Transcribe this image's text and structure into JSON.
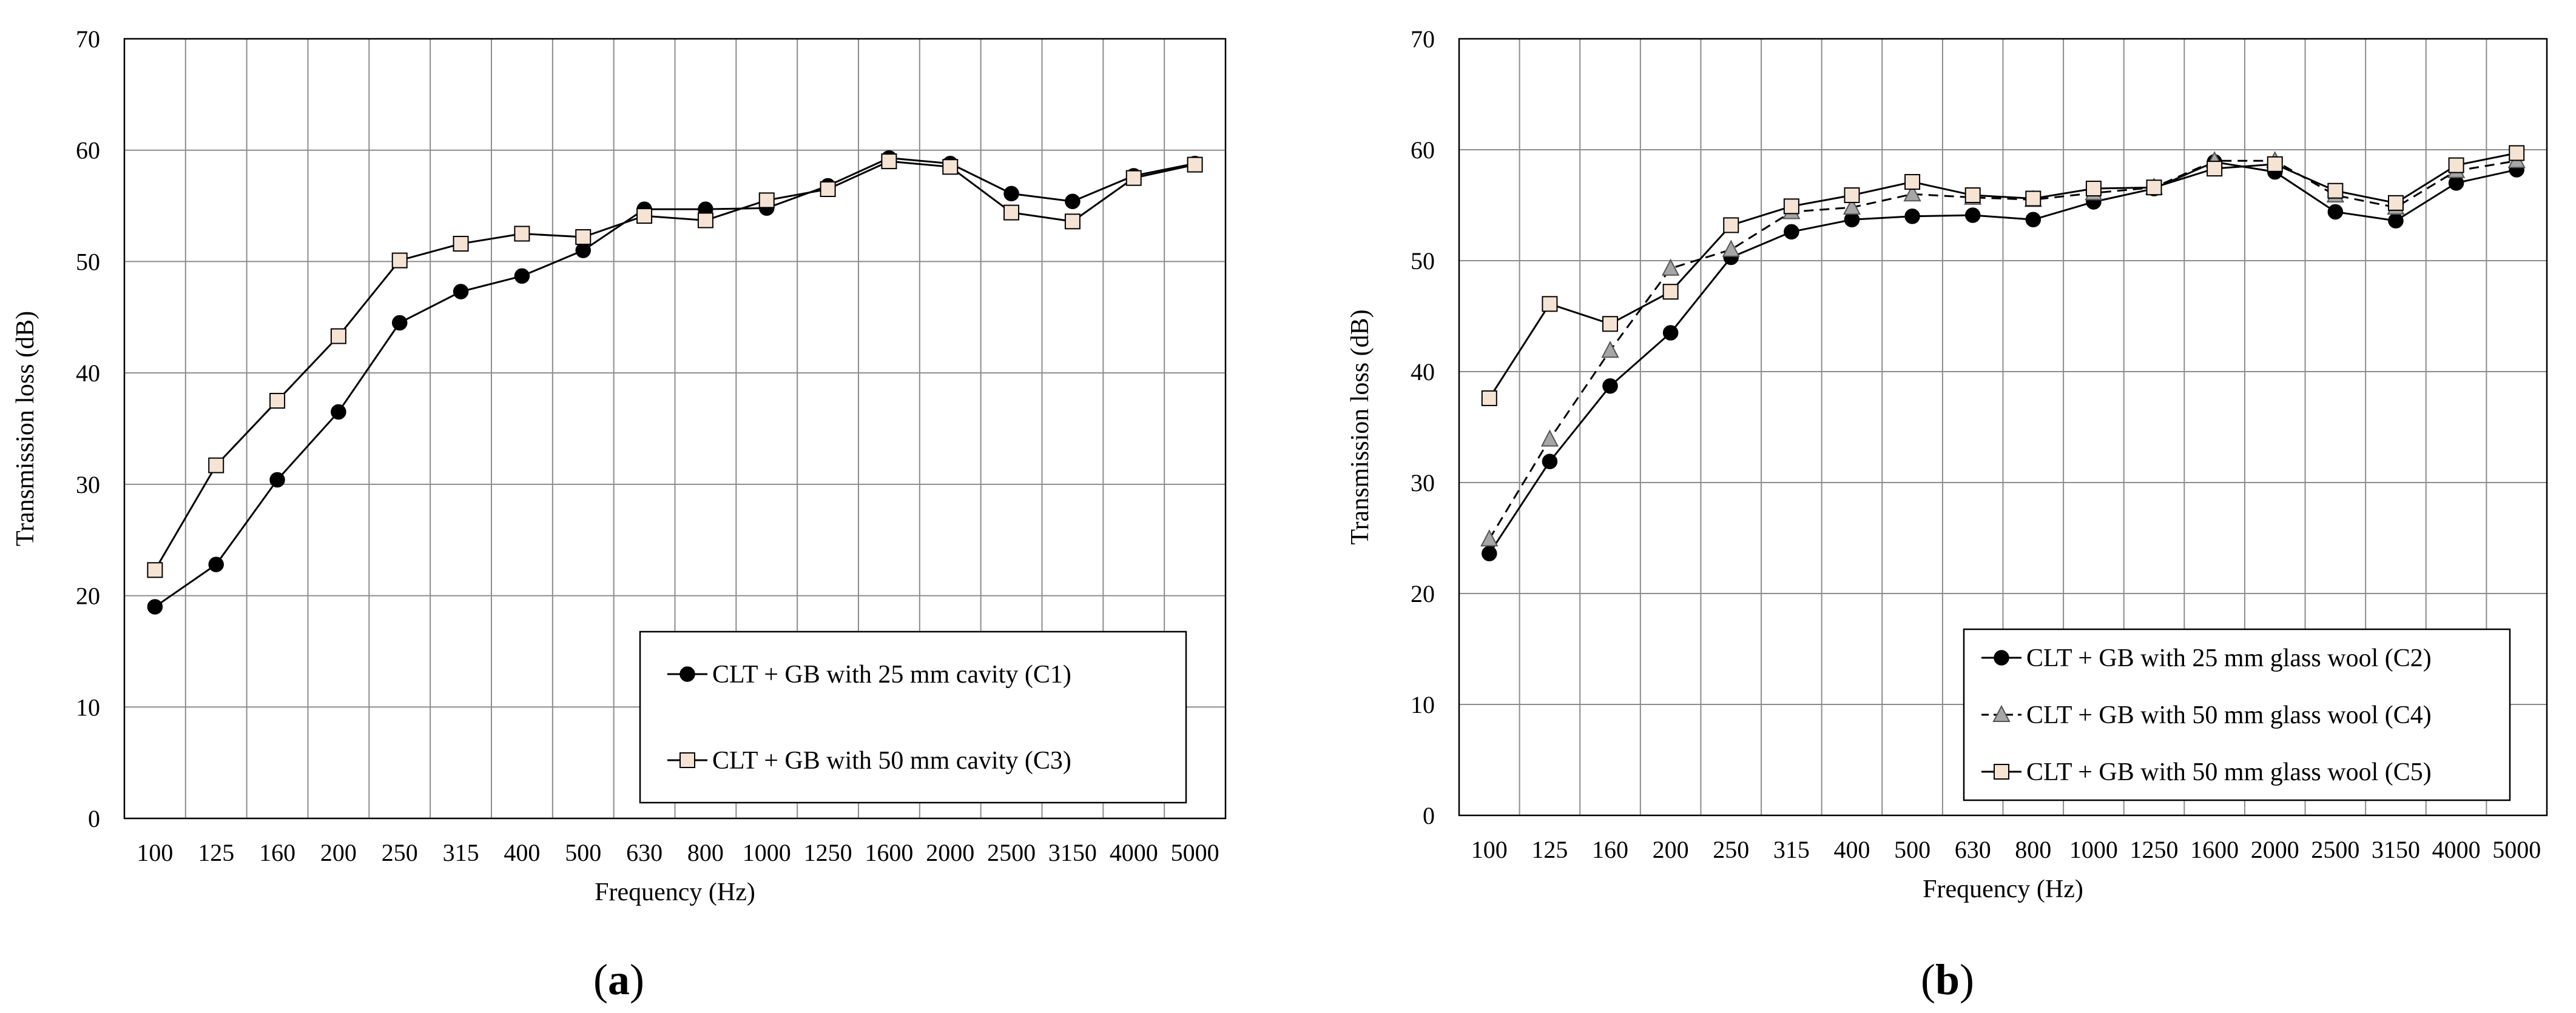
{
  "chart_data": [
    {
      "type": "line",
      "caption": "(a)",
      "xlabel": "Frequency  (Hz)",
      "ylabel": "Transmission loss (dB)",
      "ylim": [
        0,
        70
      ],
      "yticks": [
        0,
        10,
        20,
        30,
        40,
        50,
        60,
        70
      ],
      "grid": true,
      "legend_position": "bottom-right",
      "categories": [
        "100",
        "125",
        "160",
        "200",
        "250",
        "315",
        "400",
        "500",
        "630",
        "800",
        "1000",
        "1250",
        "1600",
        "2000",
        "2500",
        "3150",
        "4000",
        "5000"
      ],
      "series": [
        {
          "name": "CLT + GB with 25 mm cavity (C1)",
          "marker": "circle",
          "line": "solid",
          "color": "#000000",
          "values": [
            19.0,
            22.8,
            30.4,
            36.5,
            44.5,
            47.3,
            48.7,
            51.0,
            54.7,
            54.7,
            54.8,
            56.8,
            59.3,
            58.8,
            56.1,
            55.4,
            57.7,
            58.8
          ]
        },
        {
          "name": "CLT + GB with 50 mm cavity (C3)",
          "marker": "square",
          "line": "solid",
          "color": "#f5e3d3",
          "values": [
            22.3,
            31.7,
            37.5,
            43.3,
            50.1,
            51.6,
            52.5,
            52.2,
            54.1,
            53.7,
            55.5,
            56.5,
            59.0,
            58.5,
            54.4,
            53.6,
            57.5,
            58.7
          ]
        }
      ]
    },
    {
      "type": "line",
      "caption": "(b)",
      "xlabel": "Frequency  (Hz)",
      "ylabel": "Transmission loss (dB)",
      "ylim": [
        0,
        70
      ],
      "yticks": [
        0,
        10,
        20,
        30,
        40,
        50,
        60,
        70
      ],
      "grid": true,
      "legend_position": "bottom-right",
      "categories": [
        "100",
        "125",
        "160",
        "200",
        "250",
        "315",
        "400",
        "500",
        "630",
        "800",
        "1000",
        "1250",
        "1600",
        "2000",
        "2500",
        "3150",
        "4000",
        "5000"
      ],
      "series": [
        {
          "name": "CLT + GB with 25 mm glass wool (C2)",
          "marker": "circle",
          "line": "solid",
          "color": "#000000",
          "values": [
            23.6,
            31.9,
            38.7,
            43.5,
            50.3,
            52.6,
            53.7,
            54.0,
            54.1,
            53.7,
            55.3,
            56.5,
            58.9,
            58.0,
            54.4,
            53.6,
            57.0,
            58.2
          ]
        },
        {
          "name": "CLT + GB with 50 mm glass wool (C4)",
          "marker": "triangle",
          "line": "dashed",
          "color": "#a6a6a6",
          "values": [
            24.9,
            33.9,
            41.9,
            49.3,
            51.0,
            54.4,
            54.8,
            56.0,
            55.7,
            55.5,
            56.1,
            56.6,
            59.0,
            59.0,
            55.9,
            54.8,
            58.1,
            59.0
          ]
        },
        {
          "name": "CLT + GB with 50 mm glass wool (C5)",
          "marker": "square",
          "line": "solid",
          "color": "#f5e3d3",
          "values": [
            37.6,
            46.1,
            44.3,
            47.2,
            53.2,
            54.9,
            55.9,
            57.1,
            55.9,
            55.6,
            56.5,
            56.6,
            58.3,
            58.7,
            56.3,
            55.2,
            58.6,
            59.7
          ]
        }
      ]
    }
  ]
}
